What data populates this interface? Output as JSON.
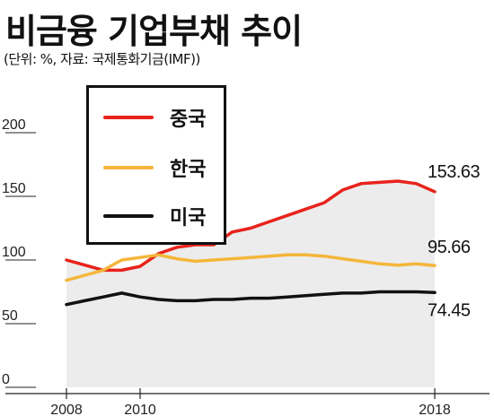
{
  "title": "비금융 기업부채 추이",
  "subtitle": "(단위: %, 자료: 국제통화기금(IMF))",
  "chart_data": {
    "type": "line",
    "x": [
      2008,
      2008.5,
      2009,
      2009.5,
      2010,
      2010.5,
      2011,
      2011.5,
      2012,
      2012.5,
      2013,
      2013.5,
      2014,
      2014.5,
      2015,
      2015.5,
      2016,
      2016.5,
      2017,
      2017.5,
      2018
    ],
    "x_ticks": [
      "2008",
      "2010",
      "2018"
    ],
    "x_tick_values": [
      2008,
      2010,
      2018
    ],
    "y_ticks": [
      "0",
      "50",
      "100",
      "150",
      "200"
    ],
    "ylim": [
      0,
      200
    ],
    "xlim": [
      2008,
      2018
    ],
    "grid": false,
    "legend_position": "top-left",
    "series": [
      {
        "name": "중국",
        "color": "#e8231c",
        "values": [
          100,
          96,
          92,
          92,
          95,
          105,
          110,
          112,
          112,
          122,
          125,
          130,
          135,
          140,
          145,
          155,
          160,
          161,
          162,
          160,
          153.63
        ],
        "end_label": "153.63",
        "fill": true
      },
      {
        "name": "한국",
        "color": "#f4b63a",
        "values": [
          84,
          88,
          92,
          100,
          102,
          104,
          101,
          99,
          100,
          101,
          102,
          103,
          104,
          104,
          103,
          101,
          99,
          97,
          96,
          97,
          95.66
        ],
        "end_label": "95.66"
      },
      {
        "name": "미국",
        "color": "#111111",
        "values": [
          65,
          68,
          71,
          74,
          71,
          69,
          68,
          68,
          69,
          69,
          70,
          70,
          71,
          72,
          73,
          74,
          74,
          75,
          75,
          75,
          74.45
        ],
        "end_label": "74.45"
      }
    ]
  }
}
